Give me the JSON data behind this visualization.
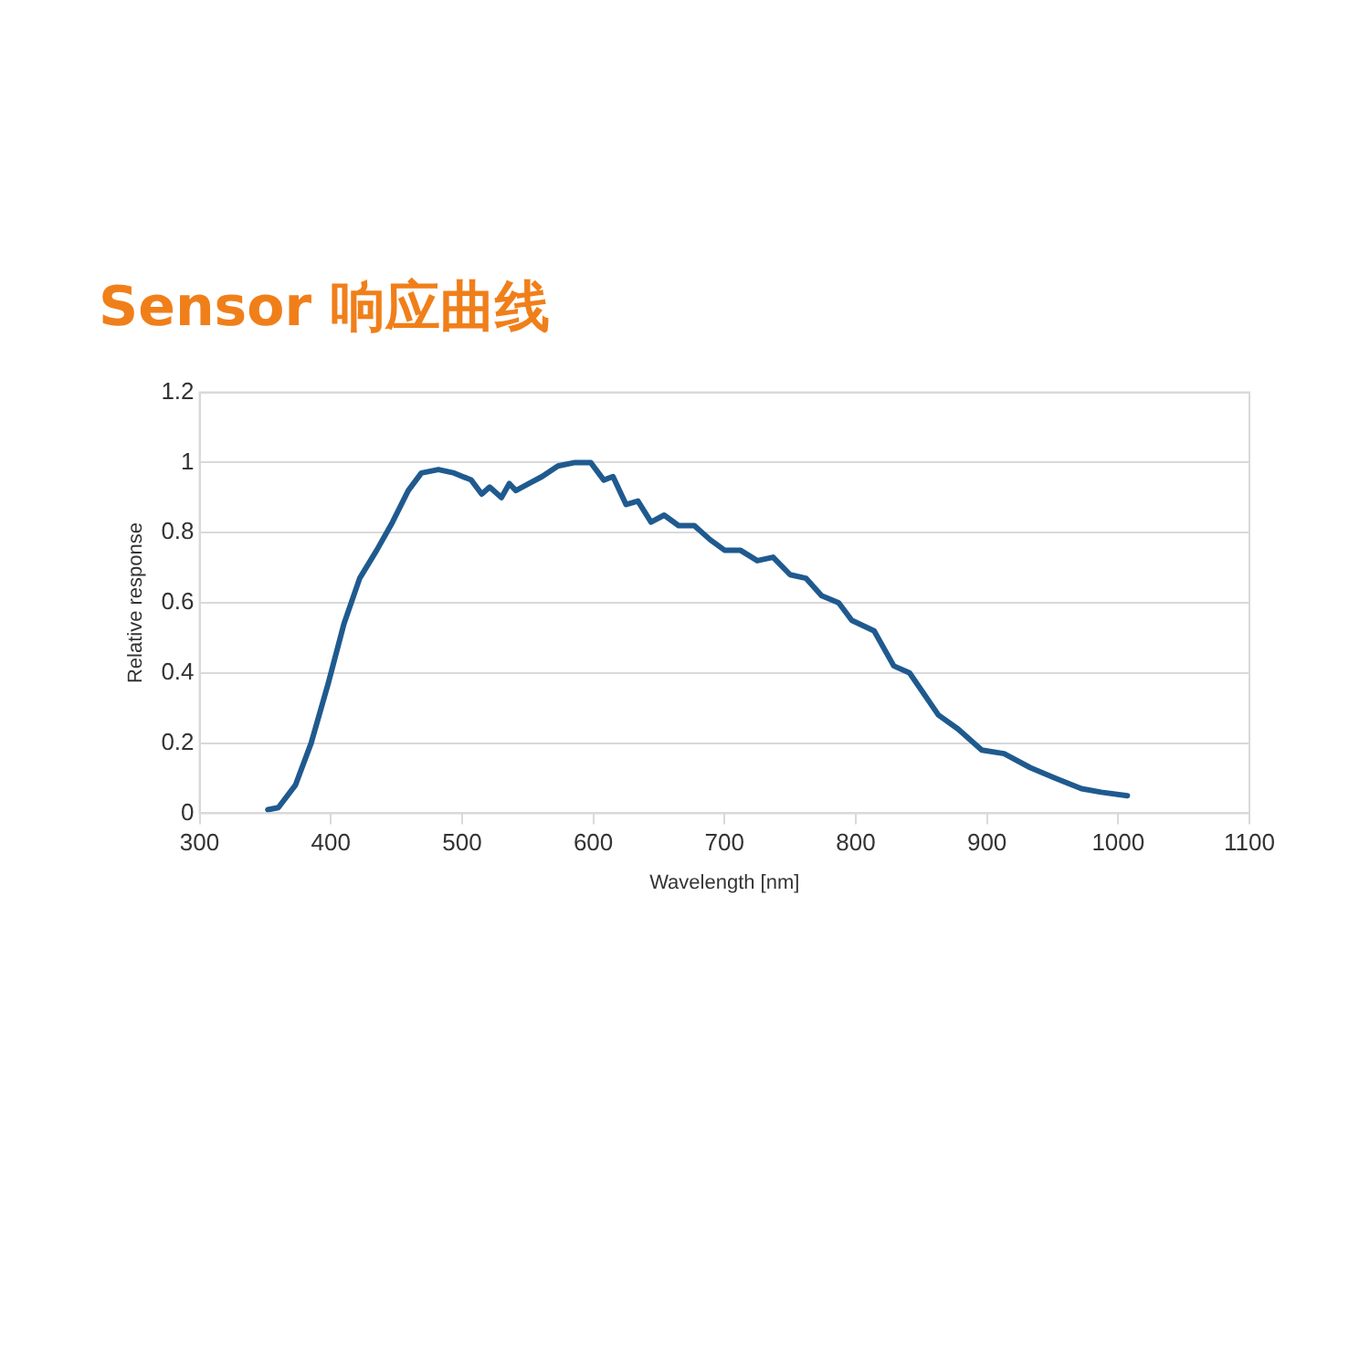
{
  "chart_data": {
    "type": "line",
    "title": "Sensor 响应曲线",
    "xlabel": "Wavelength [nm]",
    "ylabel": "Relative response",
    "series": [
      {
        "color": "#1f5a8f",
        "x": [
          352,
          360,
          373,
          385,
          398,
          410,
          422,
          435,
          447,
          459,
          469,
          482,
          494,
          507,
          515,
          521,
          530,
          536,
          541,
          551,
          561,
          573,
          586,
          598,
          608,
          615,
          625,
          634,
          644,
          654,
          665,
          677,
          689,
          700,
          712,
          725,
          737,
          750,
          762,
          774,
          787,
          797,
          814,
          829,
          841,
          863,
          878,
          896,
          913,
          933,
          952,
          972,
          987,
          1007
        ],
        "values": [
          0.01,
          0.016,
          0.08,
          0.2,
          0.37,
          0.54,
          0.67,
          0.75,
          0.83,
          0.92,
          0.97,
          0.98,
          0.97,
          0.95,
          0.91,
          0.93,
          0.9,
          0.94,
          0.92,
          0.94,
          0.96,
          0.99,
          1.0,
          1.0,
          0.95,
          0.96,
          0.88,
          0.89,
          0.83,
          0.85,
          0.82,
          0.82,
          0.78,
          0.75,
          0.75,
          0.72,
          0.73,
          0.68,
          0.67,
          0.62,
          0.6,
          0.55,
          0.52,
          0.42,
          0.4,
          0.28,
          0.24,
          0.18,
          0.17,
          0.13,
          0.1,
          0.07,
          0.06,
          0.05
        ]
      }
    ],
    "xlim": [
      300,
      1100
    ],
    "xticks": [
      300,
      400,
      500,
      600,
      700,
      800,
      900,
      1000,
      1100
    ],
    "ylim": [
      0,
      1.2
    ],
    "yticks": [
      0,
      0.2,
      0.4,
      0.6,
      0.8,
      1,
      1.2
    ],
    "grid": "y",
    "legend": false,
    "marker": "none",
    "line_style": "solid"
  }
}
